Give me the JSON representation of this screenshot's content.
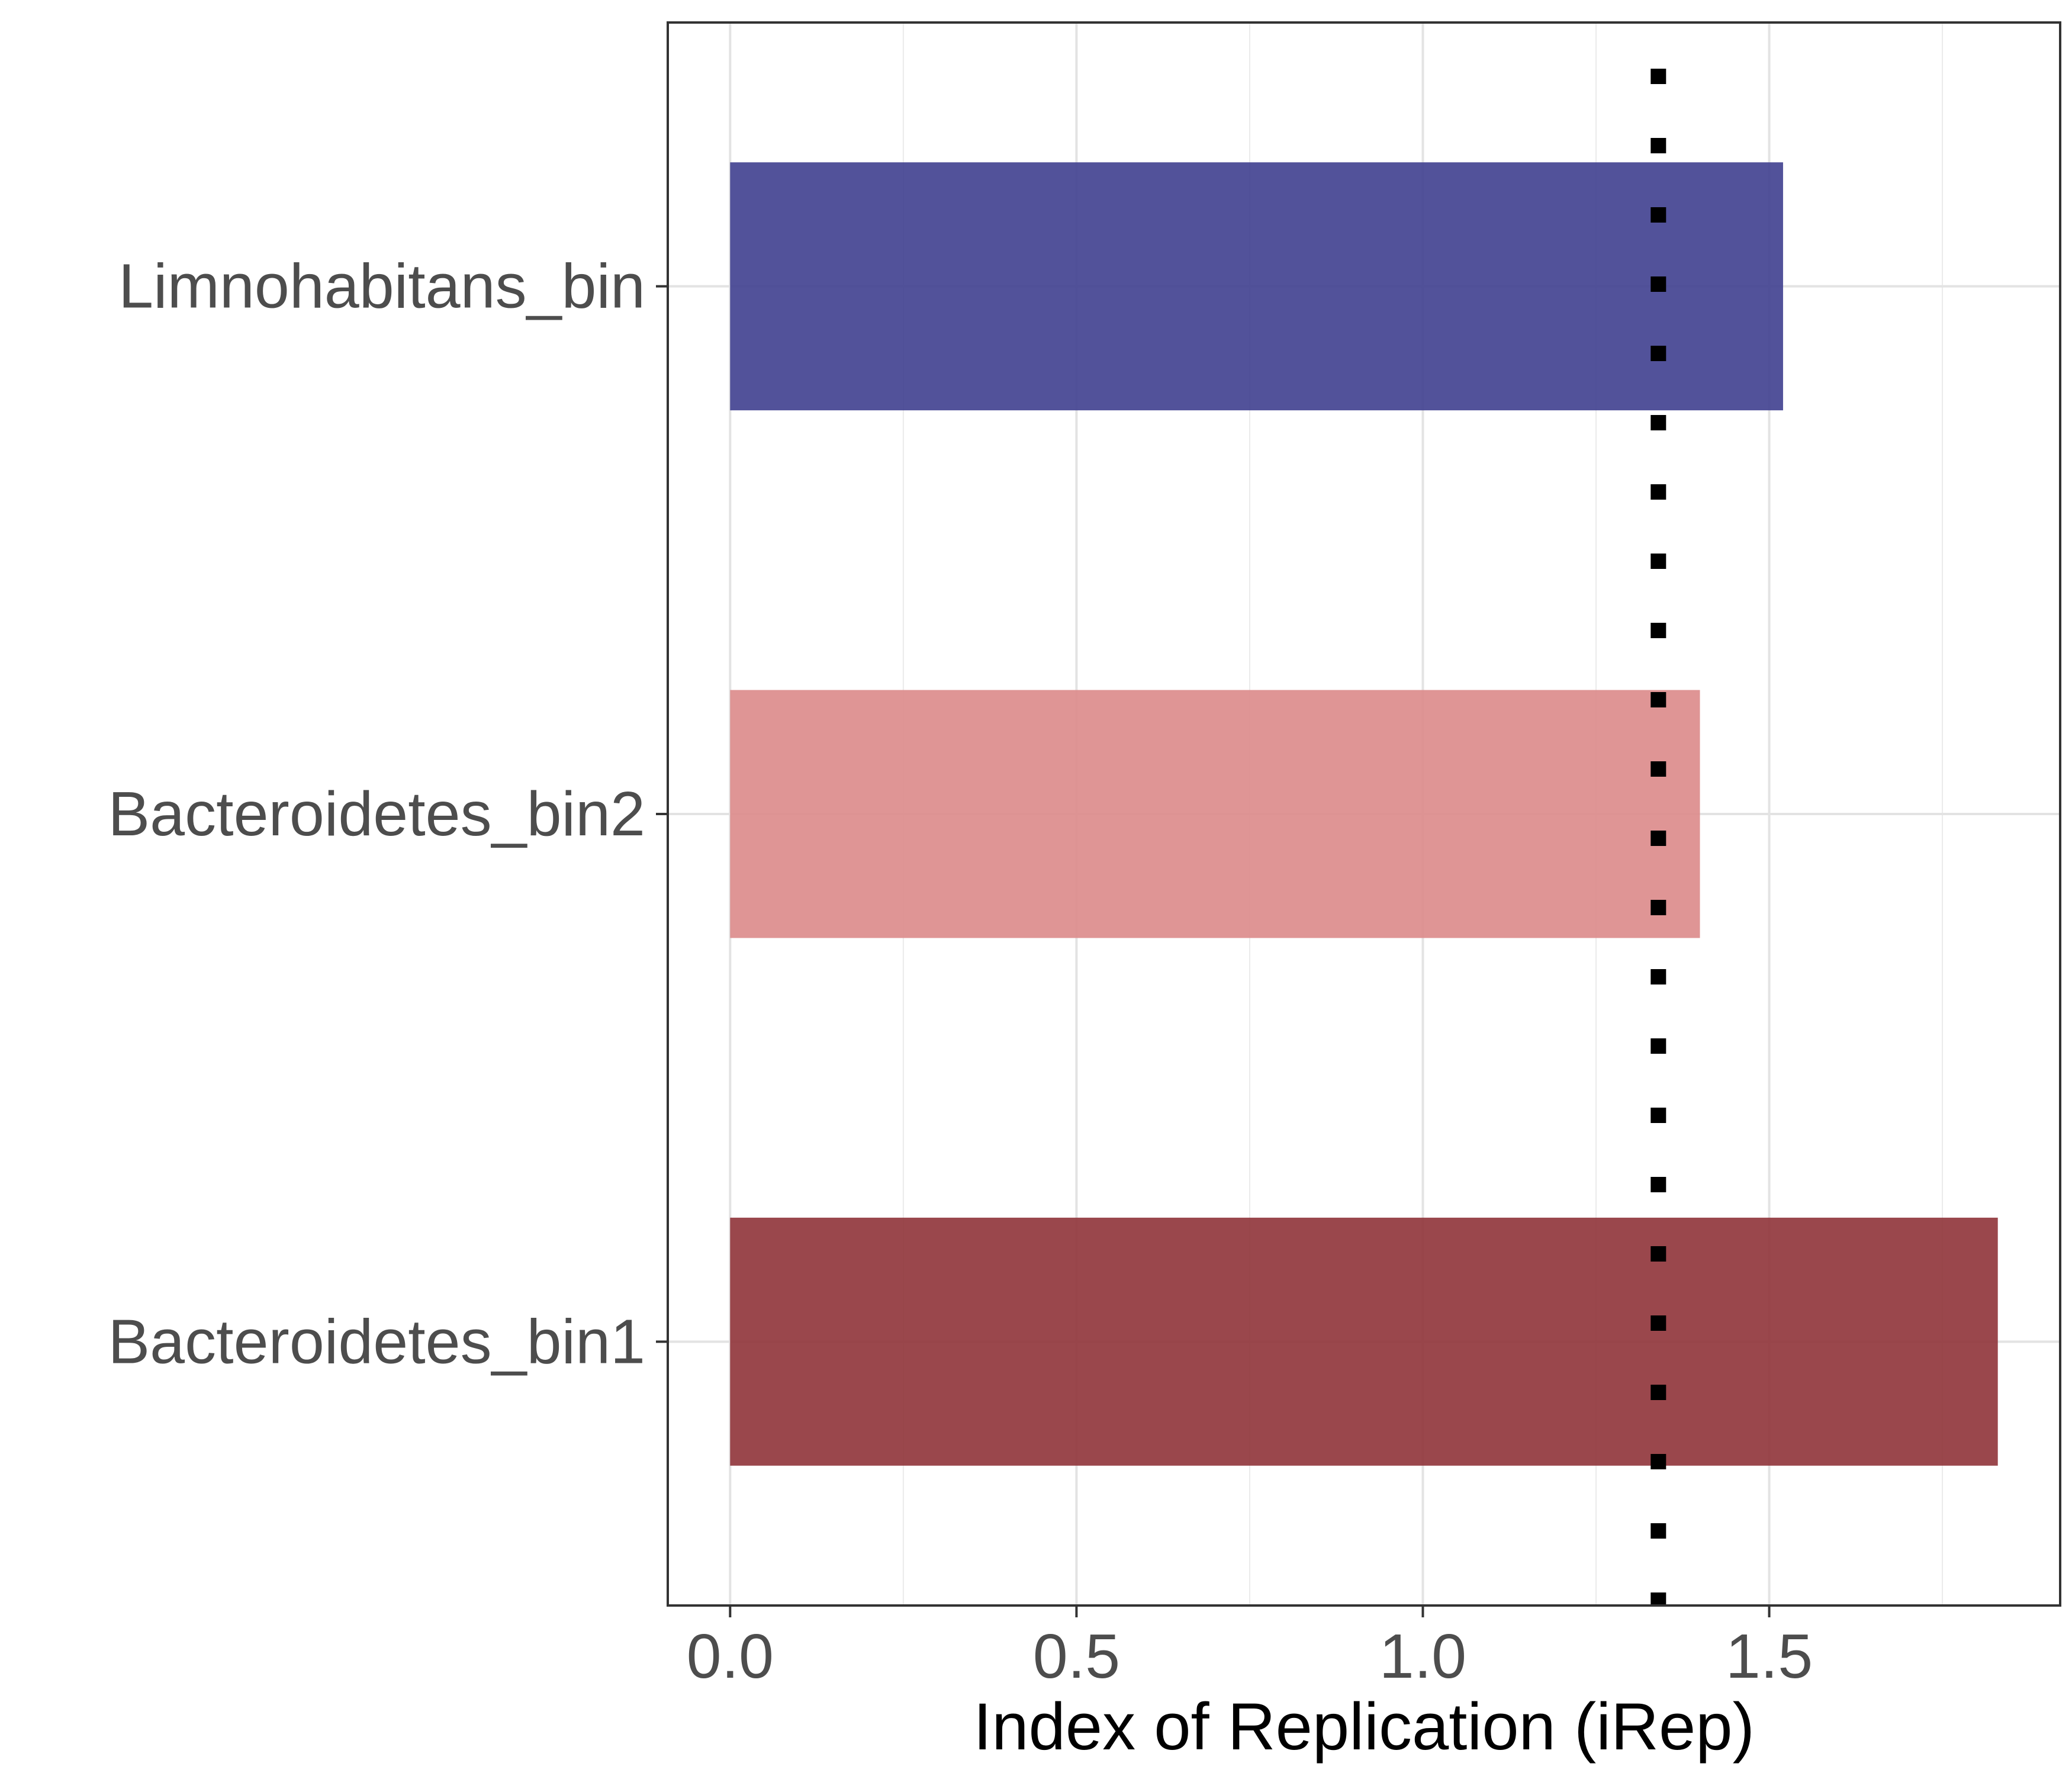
{
  "chart_data": {
    "type": "bar",
    "orientation": "horizontal",
    "categories": [
      "Limnohabitans_bin",
      "Bacteroidetes_bin2",
      "Bacteroidetes_bin1"
    ],
    "values": [
      1.52,
      1.4,
      1.83
    ],
    "colors": [
      "#3f3f8f",
      "#dc8a8a",
      "#8f3338"
    ],
    "title": "",
    "xlabel": "Index of Replication (iRep)",
    "ylabel": "",
    "xlim": [
      -0.09,
      1.92
    ],
    "xticks": [
      0.0,
      0.5,
      1.0,
      1.5
    ],
    "xtick_labels": [
      "0.0",
      "0.5",
      "1.0",
      "1.5"
    ],
    "reference_line": {
      "x": 1.34,
      "style": "dotted",
      "color": "#000000"
    },
    "grid": true,
    "legend": "none"
  }
}
